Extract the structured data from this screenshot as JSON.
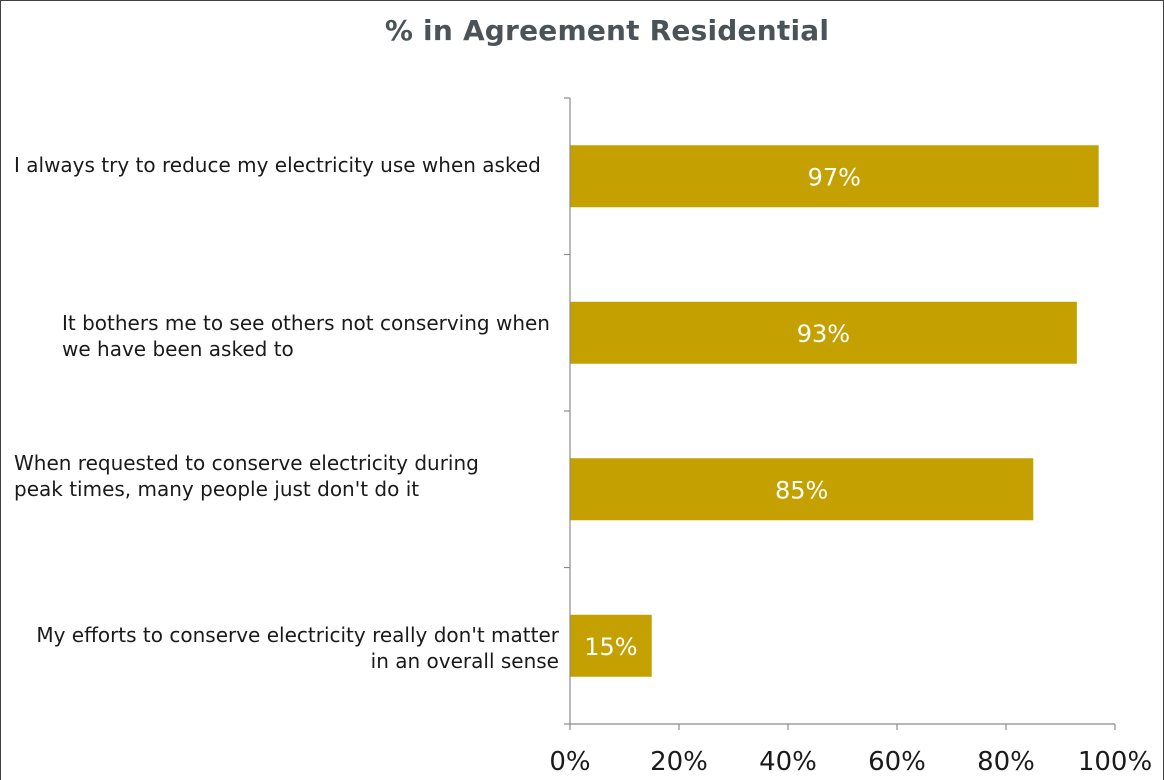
{
  "chart_data": {
    "type": "bar",
    "orientation": "horizontal",
    "title": "% in Agreement Residential",
    "categories": [
      "I always try to reduce my electricity use when asked",
      "It bothers me to see others not conserving when we have been asked to",
      "When requested to conserve electricity during peak times, many people just don't do it",
      "My efforts to conserve electricity really don't matter in an overall sense"
    ],
    "values": [
      97,
      93,
      85,
      15
    ],
    "data_labels": [
      "97%",
      "93%",
      "85%",
      "15%"
    ],
    "xlim": [
      0,
      100
    ],
    "x_ticks": [
      0,
      20,
      40,
      60,
      80,
      100
    ],
    "x_tick_labels": [
      "0%",
      "20%",
      "40%",
      "60%",
      "80%",
      "100%"
    ],
    "xlabel": "",
    "ylabel": "",
    "grid": false,
    "legend": "none",
    "colors": {
      "bar": "#C4A000",
      "bar_label": "#ffffff",
      "axis": "#8c8c8c",
      "title": "#4a5358"
    }
  }
}
